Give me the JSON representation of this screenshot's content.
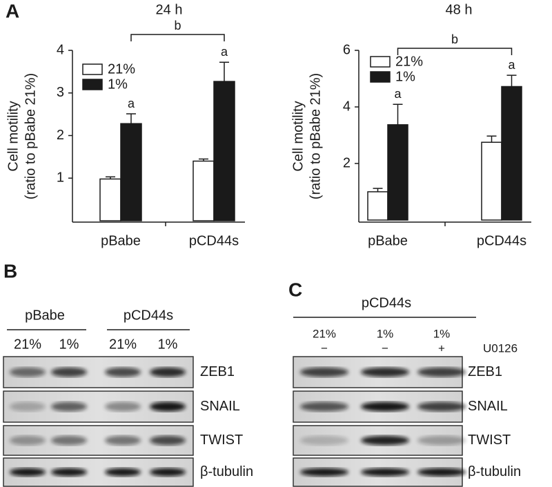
{
  "chart_data": [
    {
      "type": "bar",
      "panel_label": "A",
      "title": "24 h",
      "ylabel": [
        "Cell motility",
        "(ratio to pBabe 21%)"
      ],
      "categories": [
        "pBabe",
        "pCD44s"
      ],
      "series": [
        {
          "name": "21%",
          "color": "#ffffff",
          "values": [
            0.98,
            1.4
          ],
          "errors": [
            0.05,
            0.05
          ]
        },
        {
          "name": "1%",
          "color": "#1a1a1a",
          "values": [
            2.28,
            3.27
          ],
          "errors": [
            0.23,
            0.45
          ],
          "annotations": [
            "a",
            "a"
          ]
        }
      ],
      "bracket": "b",
      "ylim": [
        0,
        4
      ],
      "yticks": [
        1,
        2,
        3,
        4
      ],
      "grid": false,
      "legend": "upper left"
    },
    {
      "type": "bar",
      "title": "48 h",
      "ylabel": [
        "Cell motility",
        "(ratio to pBabe 21%)"
      ],
      "categories": [
        "pBabe",
        "pCD44s"
      ],
      "series": [
        {
          "name": "21%",
          "color": "#ffffff",
          "values": [
            1.0,
            2.75
          ],
          "errors": [
            0.12,
            0.22
          ]
        },
        {
          "name": "1%",
          "color": "#1a1a1a",
          "values": [
            3.37,
            4.72
          ],
          "errors": [
            0.72,
            0.4
          ],
          "annotations": [
            "a",
            "a"
          ]
        }
      ],
      "bracket": "b",
      "ylim": [
        0,
        6
      ],
      "yticks": [
        2,
        4,
        6
      ],
      "grid": false,
      "legend": "upper left"
    }
  ],
  "blot_panels": [
    {
      "label": "B",
      "groups": [
        "pBabe",
        "pCD44s"
      ],
      "lanes": [
        "21%",
        "1%",
        "21%",
        "1%"
      ],
      "bands": [
        "ZEB1",
        "SNAIL",
        "TWIST",
        "β-tubulin"
      ]
    },
    {
      "label": "C",
      "groups": [
        "pCD44s"
      ],
      "lanes": [
        "21%",
        "1%",
        "1%"
      ],
      "treatment": {
        "name": "U0126",
        "lanes": [
          "−",
          "−",
          "+"
        ]
      },
      "bands": [
        "ZEB1",
        "SNAIL",
        "TWIST",
        "β-tubulin"
      ]
    }
  ]
}
